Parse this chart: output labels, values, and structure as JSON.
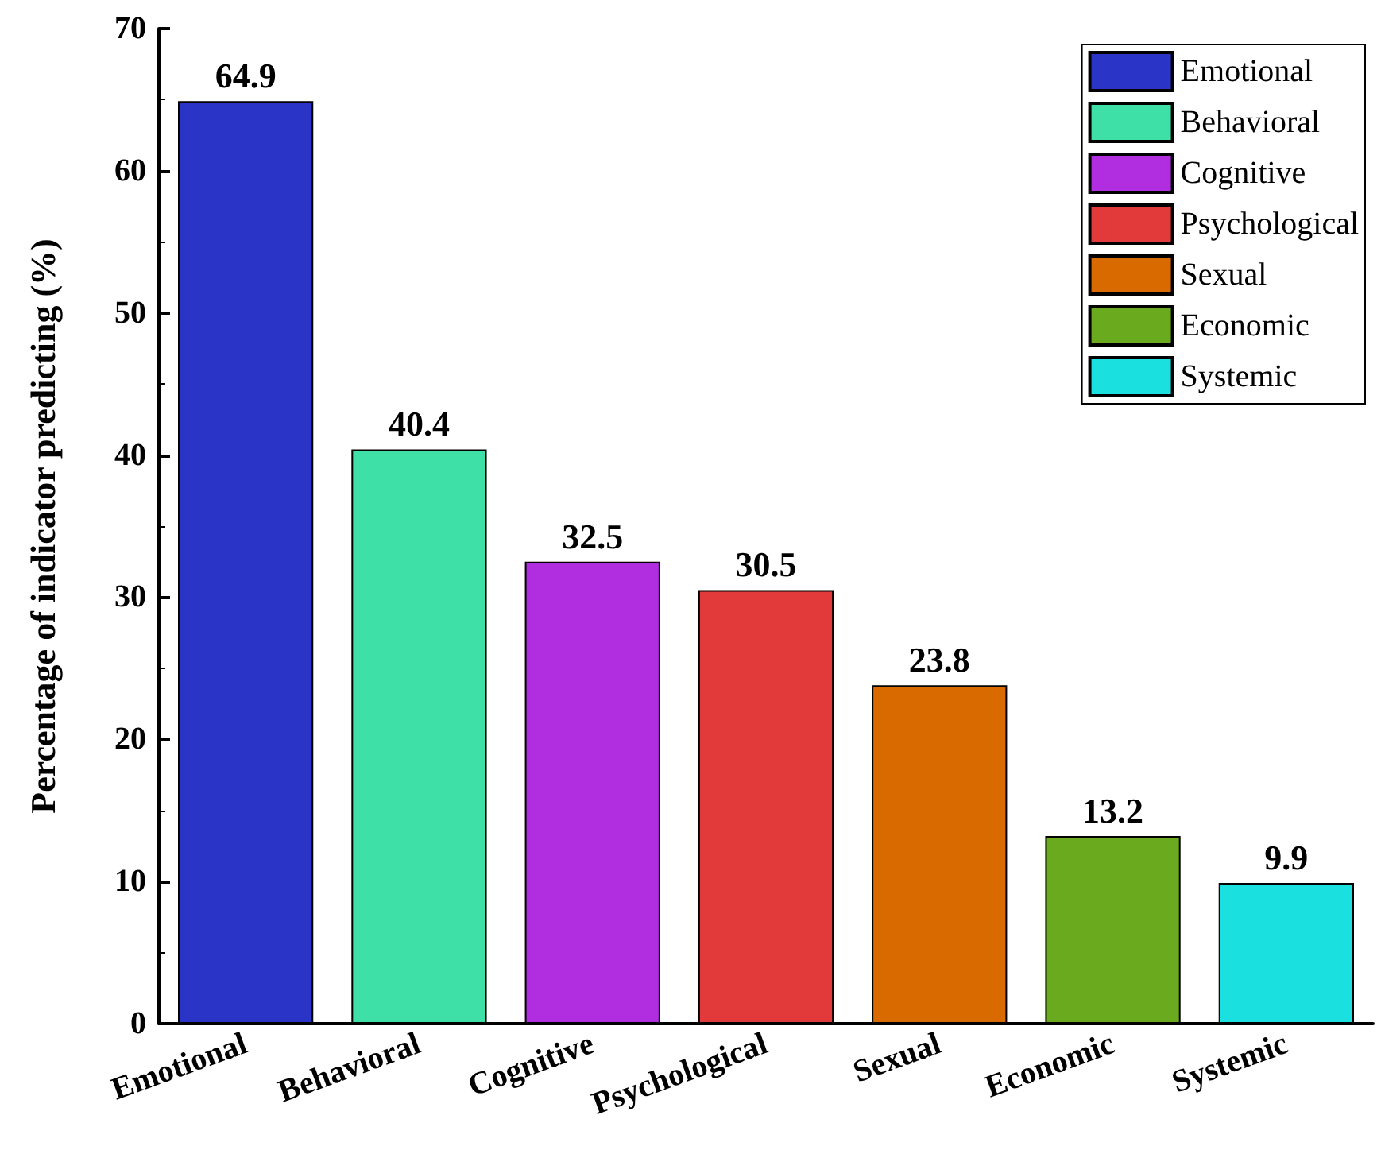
{
  "chart_data": {
    "type": "bar",
    "ylabel": "Percentage of indicator predicting (%)",
    "categories": [
      "Emotional",
      "Behavioral",
      "Cognitive",
      "Psychological",
      "Sexual",
      "Economic",
      "Systemic"
    ],
    "series": [
      {
        "name": "Emotional",
        "color": "#2a35c8",
        "values": [
          64.9,
          null,
          null,
          null,
          null,
          null,
          null
        ]
      },
      {
        "name": "Behavioral",
        "color": "#3ee0a8",
        "values": [
          null,
          40.4,
          null,
          null,
          null,
          null,
          null
        ]
      },
      {
        "name": "Cognitive",
        "color": "#b02ee0",
        "values": [
          null,
          null,
          32.5,
          null,
          null,
          null,
          null
        ]
      },
      {
        "name": "Psychological",
        "color": "#e23a3a",
        "values": [
          null,
          null,
          null,
          30.5,
          null,
          null,
          null
        ]
      },
      {
        "name": "Sexual",
        "color": "#d86a00",
        "values": [
          null,
          null,
          null,
          null,
          23.8,
          null,
          null
        ]
      },
      {
        "name": "Economic",
        "color": "#6aaa1e",
        "values": [
          null,
          null,
          null,
          null,
          null,
          13.2,
          null
        ]
      },
      {
        "name": "Systemic",
        "color": "#1ae0e0",
        "values": [
          null,
          null,
          null,
          null,
          null,
          null,
          9.9
        ]
      }
    ],
    "stacked": true,
    "ylim": [
      0,
      70
    ],
    "yticks": [
      0,
      10,
      20,
      30,
      40,
      50,
      60,
      70
    ],
    "grid": false,
    "legend": "top right",
    "data_labels": true
  }
}
